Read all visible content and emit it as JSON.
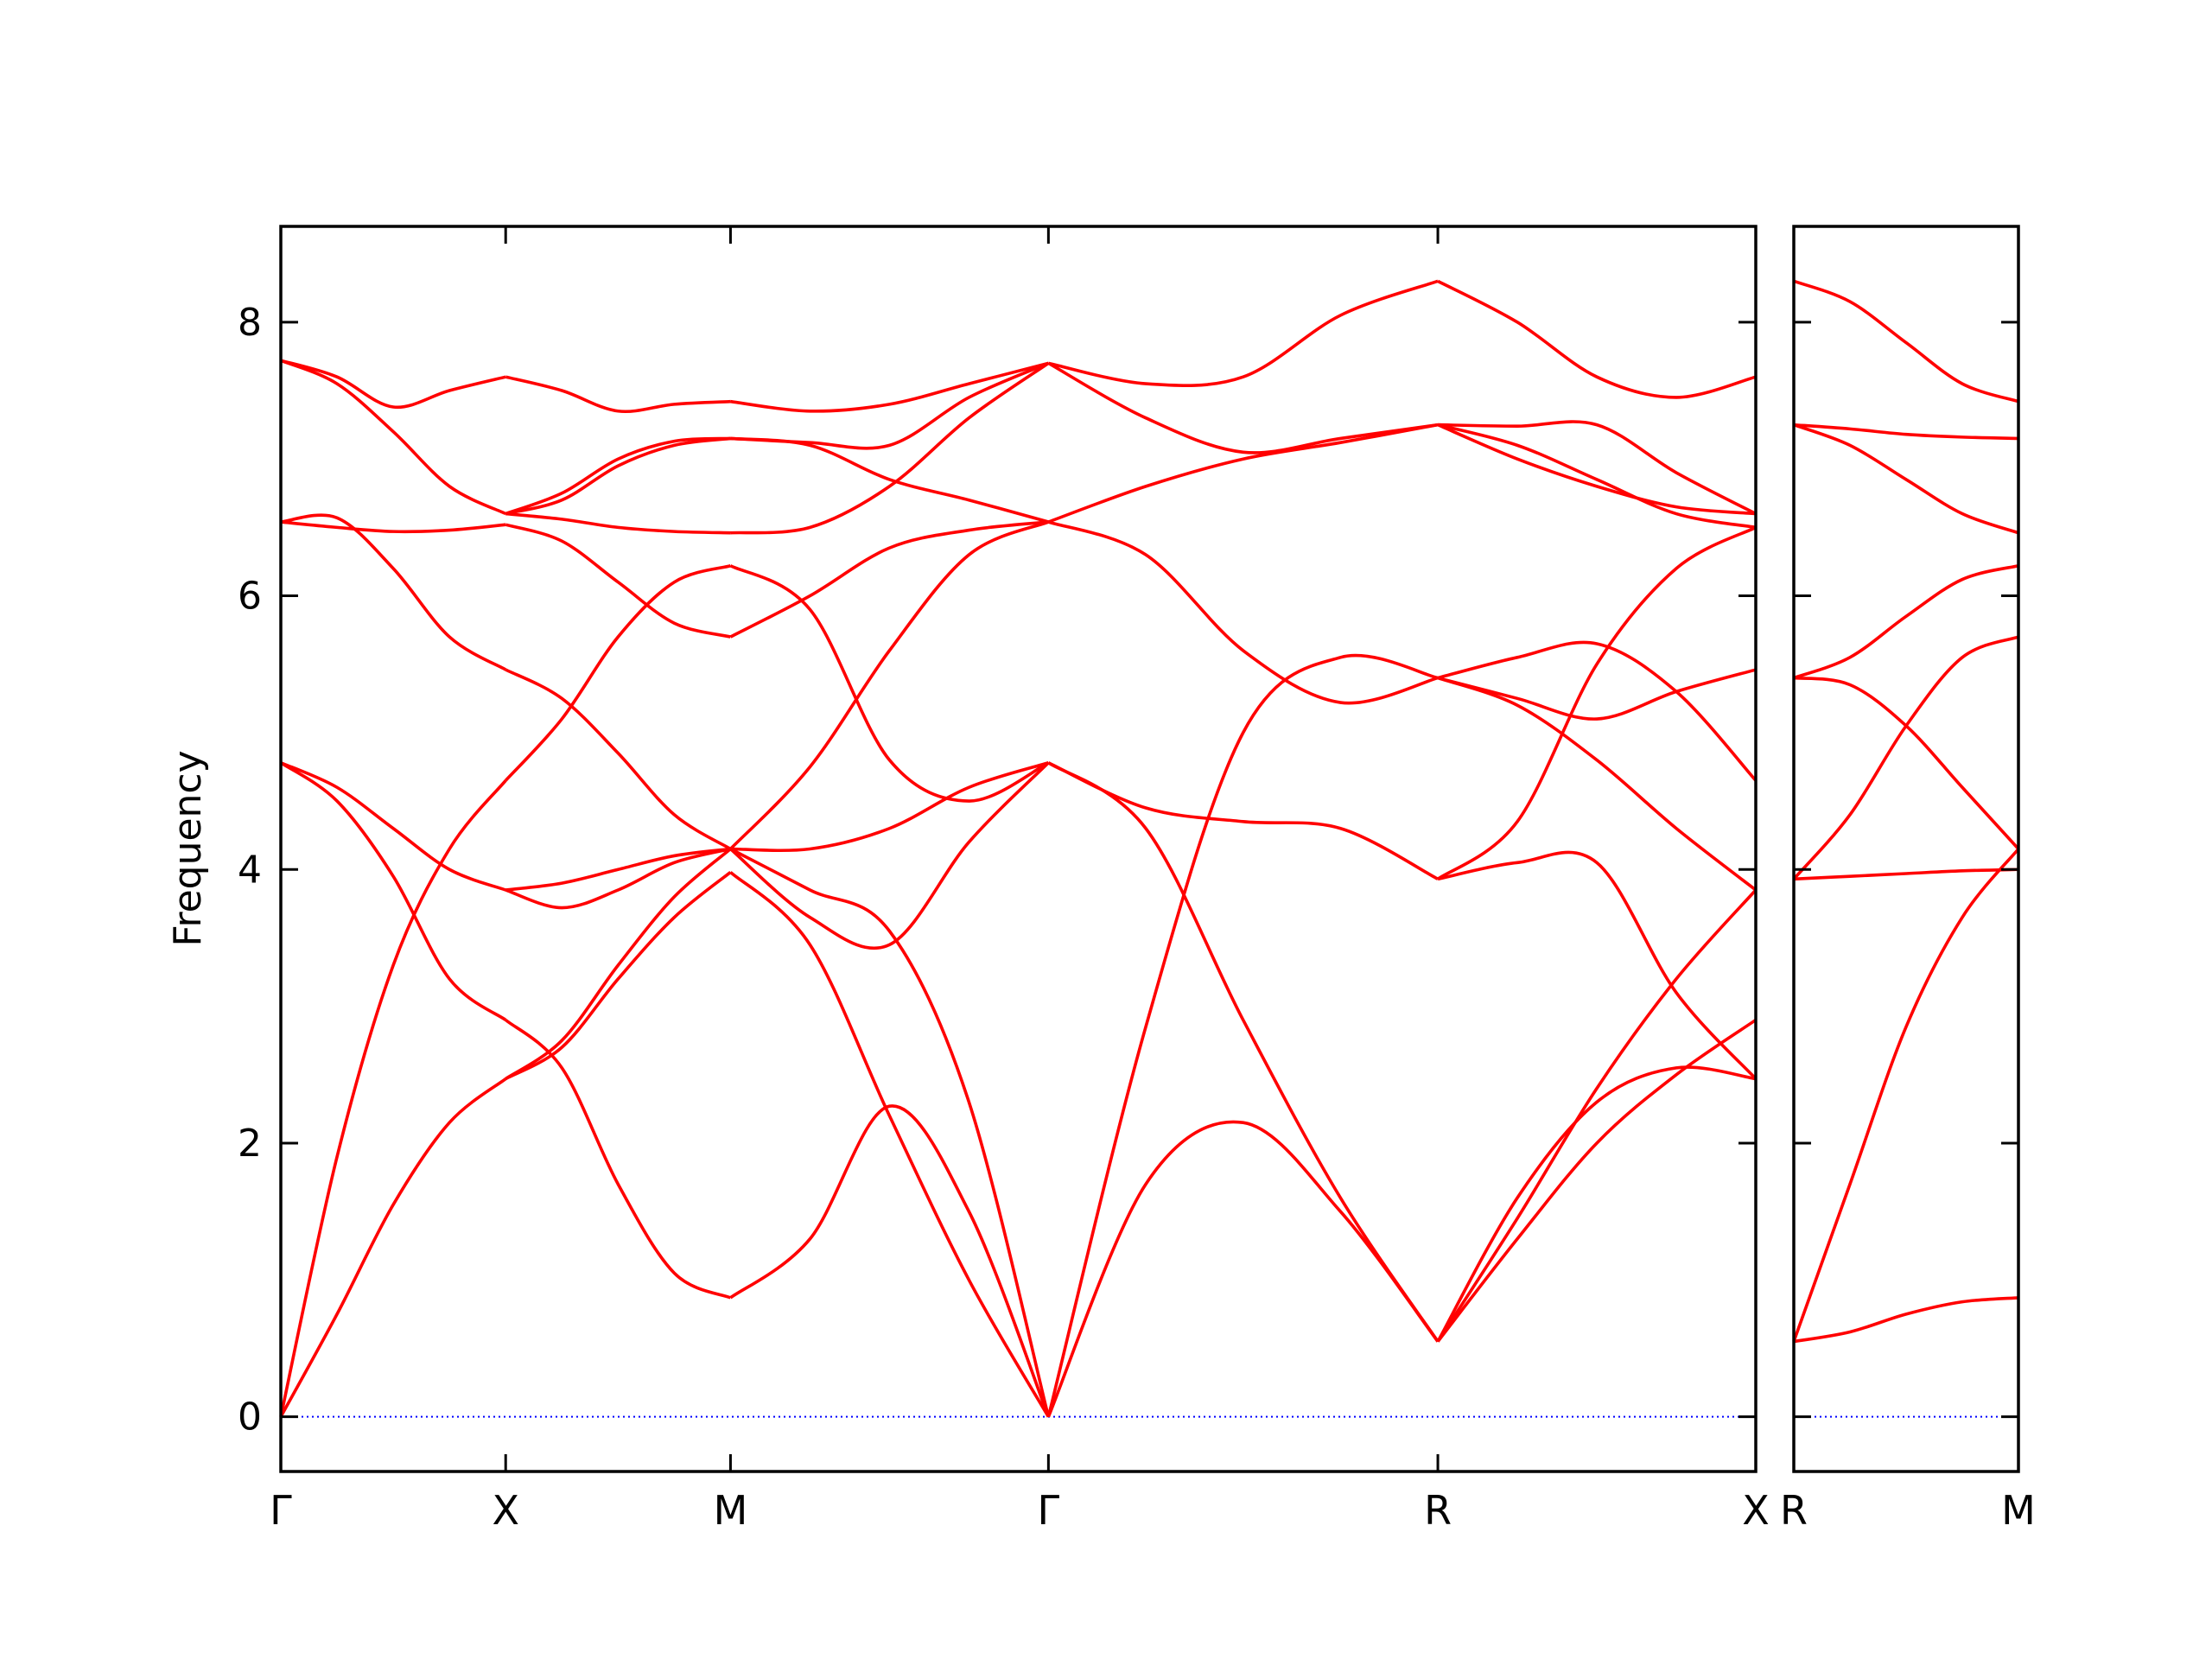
{
  "chart_data": {
    "type": "line",
    "ylabel": "Frequency",
    "ylim": [
      -0.4,
      8.7
    ],
    "yticks": [
      0,
      2,
      4,
      6,
      8
    ],
    "line_color": "#ff0000",
    "zero_line_color": "#0000ff",
    "grid": false,
    "sample_fractions": [
      0,
      0.25,
      0.5,
      0.75,
      1
    ],
    "panels": [
      {
        "labels": [
          "Γ",
          "X",
          "M",
          "Γ",
          "R",
          "X"
        ],
        "positions": [
          0,
          0.5,
          1.0,
          1.707,
          2.573,
          3.28
        ],
        "segments": [
          {
            "from": "Γ",
            "to": "X",
            "bands": [
              [
                0,
                0.75,
                1.55,
                2.15,
                2.47
              ],
              [
                0,
                1.9,
                3.3,
                4.15,
                4.65
              ],
              [
                4.78,
                4.5,
                3.95,
                3.2,
                2.9
              ],
              [
                4.78,
                4.6,
                4.3,
                4.0,
                3.85
              ],
              [
                6.54,
                6.5,
                6.47,
                6.48,
                6.52
              ],
              [
                6.54,
                6.57,
                6.2,
                5.7,
                5.46
              ],
              [
                7.72,
                7.6,
                7.38,
                7.5,
                7.6
              ],
              [
                7.72,
                7.55,
                7.2,
                6.8,
                6.6
              ]
            ]
          },
          {
            "from": "X",
            "to": "M",
            "bands": [
              [
                2.47,
                2.75,
                3.3,
                3.8,
                4.15
              ],
              [
                2.47,
                2.7,
                3.2,
                3.65,
                3.98
              ],
              [
                2.9,
                2.55,
                1.7,
                1.05,
                0.87
              ],
              [
                3.85,
                3.72,
                3.85,
                4.05,
                4.15
              ],
              [
                3.85,
                3.9,
                4.0,
                4.1,
                4.15
              ],
              [
                4.65,
                5.1,
                5.7,
                6.1,
                6.22
              ],
              [
                5.46,
                5.25,
                4.85,
                4.4,
                4.15
              ],
              [
                6.52,
                6.4,
                6.1,
                5.8,
                5.7
              ],
              [
                6.6,
                6.56,
                6.5,
                6.47,
                6.46
              ],
              [
                6.6,
                6.75,
                7.0,
                7.13,
                7.15
              ],
              [
                6.6,
                6.7,
                6.95,
                7.1,
                7.15
              ],
              [
                7.6,
                7.5,
                7.35,
                7.4,
                7.42
              ]
            ]
          },
          {
            "from": "M",
            "to": "Γ",
            "bands": [
              [
                0.87,
                1.3,
                2.27,
                1.5,
                0
              ],
              [
                3.98,
                3.45,
                2.2,
                1.0,
                0
              ],
              [
                4.15,
                3.85,
                3.55,
                2.3,
                0
              ],
              [
                4.15,
                3.65,
                3.45,
                4.2,
                4.78
              ],
              [
                4.15,
                4.15,
                4.3,
                4.6,
                4.78
              ],
              [
                4.15,
                4.75,
                5.6,
                6.3,
                6.54
              ],
              [
                6.22,
                5.9,
                4.8,
                4.5,
                4.78
              ],
              [
                5.7,
                6.0,
                6.35,
                6.48,
                6.54
              ],
              [
                6.46,
                6.5,
                6.8,
                7.3,
                7.7
              ],
              [
                7.15,
                7.1,
                6.85,
                6.7,
                6.54
              ],
              [
                7.15,
                7.12,
                7.1,
                7.45,
                7.7
              ],
              [
                7.42,
                7.35,
                7.4,
                7.55,
                7.7
              ]
            ]
          },
          {
            "from": "Γ",
            "to": "R",
            "bands": [
              [
                0,
                1.7,
                2.15,
                1.5,
                0.55
              ],
              [
                0,
                2.85,
                5.0,
                5.55,
                5.4
              ],
              [
                4.78,
                4.3,
                2.9,
                1.6,
                0.55
              ],
              [
                4.78,
                4.45,
                4.35,
                4.3,
                3.93
              ],
              [
                6.54,
                6.3,
                5.6,
                5.22,
                5.4
              ],
              [
                6.54,
                6.8,
                7.0,
                7.12,
                7.25
              ],
              [
                7.7,
                7.3,
                7.05,
                7.15,
                7.25
              ],
              [
                7.7,
                7.55,
                7.6,
                8.05,
                8.3
              ]
            ]
          },
          {
            "from": "R",
            "to": "X",
            "bands": [
              [
                0.55,
                1.6,
                2.3,
                2.55,
                2.47
              ],
              [
                0.55,
                1.3,
                2.0,
                2.5,
                2.9
              ],
              [
                0.55,
                1.45,
                2.4,
                3.2,
                3.85
              ],
              [
                3.93,
                4.05,
                4.05,
                3.1,
                2.47
              ],
              [
                3.93,
                4.35,
                5.5,
                6.2,
                6.5
              ],
              [
                5.4,
                5.55,
                5.65,
                5.3,
                4.65
              ],
              [
                5.4,
                5.2,
                4.8,
                4.3,
                3.85
              ],
              [
                5.4,
                5.25,
                5.1,
                5.3,
                5.46
              ],
              [
                7.25,
                7.0,
                6.8,
                6.65,
                6.6
              ],
              [
                7.25,
                7.24,
                7.25,
                6.9,
                6.6
              ],
              [
                7.25,
                7.1,
                6.85,
                6.6,
                6.5
              ],
              [
                8.3,
                8.0,
                7.6,
                7.45,
                7.6
              ]
            ]
          }
        ]
      },
      {
        "labels": [
          "R",
          "M"
        ],
        "positions": [
          0,
          0.5
        ],
        "segments": [
          {
            "from": "R",
            "to": "M",
            "bands": [
              [
                0.55,
                0.62,
                0.75,
                0.84,
                0.87
              ],
              [
                0.55,
                1.7,
                2.85,
                3.65,
                4.15
              ],
              [
                3.93,
                3.95,
                3.97,
                3.99,
                4.0
              ],
              [
                3.93,
                4.4,
                5.05,
                5.55,
                5.7
              ],
              [
                5.4,
                5.35,
                5.05,
                4.6,
                4.15
              ],
              [
                5.4,
                5.55,
                5.85,
                6.12,
                6.22
              ],
              [
                7.25,
                7.1,
                6.85,
                6.6,
                6.46
              ],
              [
                7.25,
                7.22,
                7.18,
                7.16,
                7.15
              ],
              [
                8.3,
                8.15,
                7.85,
                7.55,
                7.42
              ]
            ]
          }
        ]
      }
    ]
  }
}
